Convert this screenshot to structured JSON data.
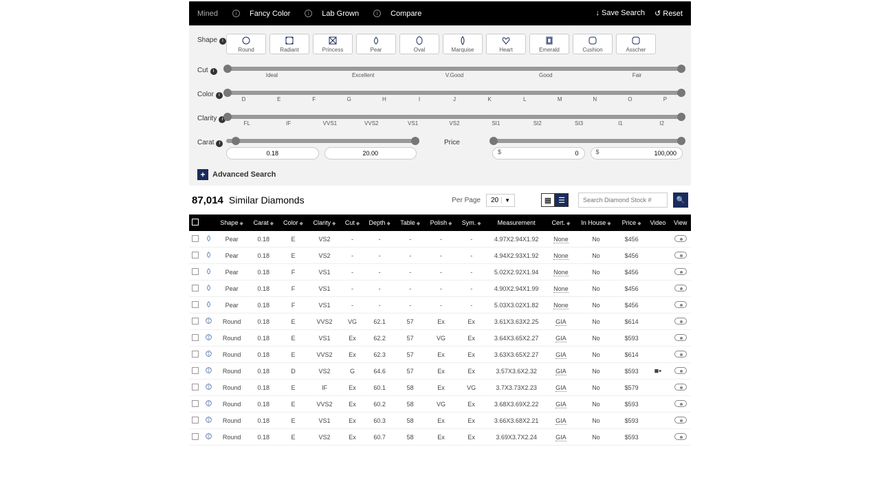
{
  "topbar": {
    "tabs": [
      "Mined",
      "Fancy Color",
      "Lab Grown",
      "Compare"
    ],
    "save": "Save Search",
    "reset": "Reset"
  },
  "filters": {
    "shape_label": "Shape",
    "shapes": [
      "Round",
      "Radiant",
      "Princess",
      "Pear",
      "Oval",
      "Marquise",
      "Heart",
      "Emerald",
      "Cushion",
      "Asscher"
    ],
    "cut_label": "Cut",
    "cut": [
      "Ideal",
      "Excellent",
      "V.Good",
      "Good",
      "Fair"
    ],
    "color_label": "Color",
    "color": [
      "D",
      "E",
      "F",
      "G",
      "H",
      "I",
      "J",
      "K",
      "L",
      "M",
      "N",
      "O",
      "P"
    ],
    "clarity_label": "Clarity",
    "clarity": [
      "FL",
      "IF",
      "VVS1",
      "VVS2",
      "VS1",
      "VS2",
      "SI1",
      "SI2",
      "SI3",
      "I1",
      "I2"
    ],
    "carat_label": "Carat",
    "carat_min": "0.18",
    "carat_max": "20.00",
    "price_label": "Price",
    "price_min": "0",
    "price_max": "100,000",
    "currency": "$",
    "advanced": "Advanced Search"
  },
  "results": {
    "count": "87,014",
    "title": "Similar Diamonds",
    "per_page_label": "Per Page",
    "per_page": "20",
    "search_placeholder": "Search Diamond Stock #"
  },
  "columns": [
    "",
    "",
    "Shape",
    "Carat",
    "Color",
    "Clarity",
    "Cut",
    "Depth",
    "Table",
    "Polish",
    "Sym.",
    "Measurement",
    "Cert.",
    "In House",
    "Price",
    "Video",
    "View"
  ],
  "rows": [
    {
      "shape": "Pear",
      "carat": "0.18",
      "color": "E",
      "clarity": "VS2",
      "cut": "-",
      "depth": "-",
      "table": "-",
      "polish": "-",
      "sym": "-",
      "meas": "4.97X2.94X1.92",
      "cert": "None",
      "ih": "No",
      "price": "$456",
      "video": ""
    },
    {
      "shape": "Pear",
      "carat": "0.18",
      "color": "E",
      "clarity": "VS2",
      "cut": "-",
      "depth": "-",
      "table": "-",
      "polish": "-",
      "sym": "-",
      "meas": "4.94X2.93X1.92",
      "cert": "None",
      "ih": "No",
      "price": "$456",
      "video": ""
    },
    {
      "shape": "Pear",
      "carat": "0.18",
      "color": "F",
      "clarity": "VS1",
      "cut": "-",
      "depth": "-",
      "table": "-",
      "polish": "-",
      "sym": "-",
      "meas": "5.02X2.92X1.94",
      "cert": "None",
      "ih": "No",
      "price": "$456",
      "video": ""
    },
    {
      "shape": "Pear",
      "carat": "0.18",
      "color": "F",
      "clarity": "VS1",
      "cut": "-",
      "depth": "-",
      "table": "-",
      "polish": "-",
      "sym": "-",
      "meas": "4.90X2.94X1.99",
      "cert": "None",
      "ih": "No",
      "price": "$456",
      "video": ""
    },
    {
      "shape": "Pear",
      "carat": "0.18",
      "color": "F",
      "clarity": "VS1",
      "cut": "-",
      "depth": "-",
      "table": "-",
      "polish": "-",
      "sym": "-",
      "meas": "5.03X3.02X1.82",
      "cert": "None",
      "ih": "No",
      "price": "$456",
      "video": ""
    },
    {
      "shape": "Round",
      "carat": "0.18",
      "color": "E",
      "clarity": "VVS2",
      "cut": "VG",
      "depth": "62.1",
      "table": "57",
      "polish": "Ex",
      "sym": "Ex",
      "meas": "3.61X3.63X2.25",
      "cert": "GIA",
      "ih": "No",
      "price": "$614",
      "video": ""
    },
    {
      "shape": "Round",
      "carat": "0.18",
      "color": "E",
      "clarity": "VS1",
      "cut": "Ex",
      "depth": "62.2",
      "table": "57",
      "polish": "VG",
      "sym": "Ex",
      "meas": "3.64X3.65X2.27",
      "cert": "GIA",
      "ih": "No",
      "price": "$593",
      "video": ""
    },
    {
      "shape": "Round",
      "carat": "0.18",
      "color": "E",
      "clarity": "VVS2",
      "cut": "Ex",
      "depth": "62.3",
      "table": "57",
      "polish": "Ex",
      "sym": "Ex",
      "meas": "3.63X3.65X2.27",
      "cert": "GIA",
      "ih": "No",
      "price": "$614",
      "video": ""
    },
    {
      "shape": "Round",
      "carat": "0.18",
      "color": "D",
      "clarity": "VS2",
      "cut": "G",
      "depth": "64.6",
      "table": "57",
      "polish": "Ex",
      "sym": "Ex",
      "meas": "3.57X3.6X2.32",
      "cert": "GIA",
      "ih": "No",
      "price": "$593",
      "video": "■"
    },
    {
      "shape": "Round",
      "carat": "0.18",
      "color": "E",
      "clarity": "IF",
      "cut": "Ex",
      "depth": "60.1",
      "table": "58",
      "polish": "Ex",
      "sym": "VG",
      "meas": "3.7X3.73X2.23",
      "cert": "GIA",
      "ih": "No",
      "price": "$579",
      "video": ""
    },
    {
      "shape": "Round",
      "carat": "0.18",
      "color": "E",
      "clarity": "VVS2",
      "cut": "Ex",
      "depth": "60.2",
      "table": "58",
      "polish": "VG",
      "sym": "Ex",
      "meas": "3.68X3.69X2.22",
      "cert": "GIA",
      "ih": "No",
      "price": "$593",
      "video": ""
    },
    {
      "shape": "Round",
      "carat": "0.18",
      "color": "E",
      "clarity": "VS1",
      "cut": "Ex",
      "depth": "60.3",
      "table": "58",
      "polish": "Ex",
      "sym": "Ex",
      "meas": "3.66X3.68X2.21",
      "cert": "GIA",
      "ih": "No",
      "price": "$593",
      "video": ""
    },
    {
      "shape": "Round",
      "carat": "0.18",
      "color": "E",
      "clarity": "VS2",
      "cut": "Ex",
      "depth": "60.7",
      "table": "58",
      "polish": "Ex",
      "sym": "Ex",
      "meas": "3.69X3.7X2.24",
      "cert": "GIA",
      "ih": "No",
      "price": "$593",
      "video": ""
    }
  ]
}
